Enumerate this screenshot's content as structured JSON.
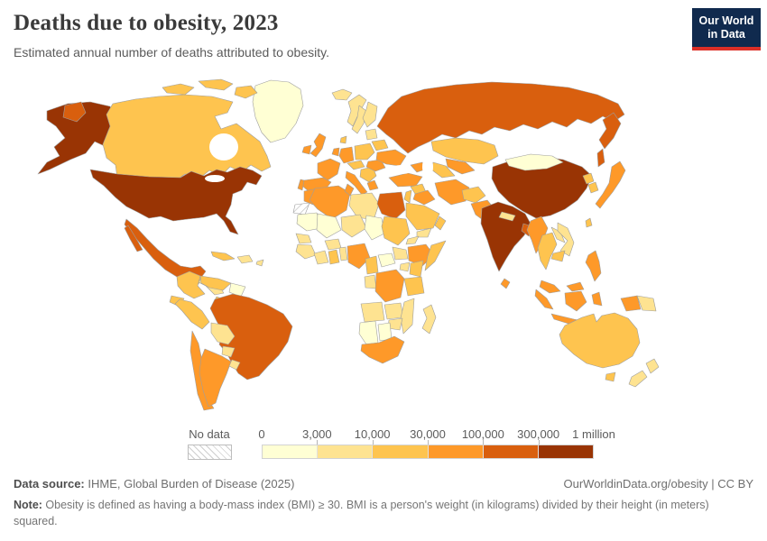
{
  "header": {
    "title": "Deaths due to obesity, 2023",
    "subtitle": "Estimated annual number of deaths attributed to obesity.",
    "logo": {
      "line1": "Our World",
      "line2": "in Data"
    }
  },
  "legend": {
    "no_data_label": "No data",
    "tick_labels": [
      "0",
      "3,000",
      "10,000",
      "30,000",
      "100,000",
      "300,000",
      "1 million"
    ]
  },
  "footer": {
    "source_label": "Data source:",
    "source_text": " IHME, Global Burden of Disease (2025)",
    "link_text": "OurWorldinData.org/obesity | CC BY",
    "note_label": "Note:",
    "note_text": " Obesity is defined as having a body-mass index (BMI) ≥ 30. BMI is a person's weight (in kilograms) divided by their height (in meters) squared."
  },
  "chart_data": {
    "type": "heatmap",
    "subtype": "world-choropleth",
    "title": "Deaths due to obesity, 2023",
    "subtitle": "Estimated annual number of deaths attributed to obesity.",
    "unit": "deaths per year",
    "legend_position": "bottom",
    "no_data": {
      "label": "No data",
      "pattern": "diagonal-hatch"
    },
    "bins": [
      {
        "range": "0–3,000",
        "color": "#ffffd4"
      },
      {
        "range": "3,000–10,000",
        "color": "#fee391"
      },
      {
        "range": "10,000–30,000",
        "color": "#fec44f"
      },
      {
        "range": "30,000–100,000",
        "color": "#fe9929"
      },
      {
        "range": "100,000–300,000",
        "color": "#d95f0e"
      },
      {
        "range": "300,000–1 million",
        "color": "#993404"
      }
    ],
    "regions": {
      "greenland": 1,
      "iceland": 2,
      "canada": 3,
      "united-states": 6,
      "mexico": 5,
      "guatemala": 3,
      "honduras-nicaragua": 2,
      "costa-rica-panama": 3,
      "cuba": 3,
      "hispaniola": 2,
      "lesser-antilles": 2,
      "colombia": 3,
      "venezuela": 3,
      "guyanas": 1,
      "ecuador": 3,
      "peru": 3,
      "brazil": 5,
      "bolivia": 2,
      "paraguay": 2,
      "chile": 4,
      "argentina": 4,
      "uruguay": 2,
      "norway": 2,
      "sweden": 2,
      "finland": 2,
      "denmark": 3,
      "united-kingdom": 4,
      "ireland": 4,
      "france": 4,
      "spain": 4,
      "portugal": 4,
      "germany": 4,
      "benelux": 4,
      "poland": 3,
      "czech-austria": 3,
      "italy": 4,
      "balkans": 3,
      "romania": 4,
      "greece": 4,
      "ukraine": 4,
      "belarus": 3,
      "baltics": 2,
      "russia": 5,
      "kazakhstan": 3,
      "uzbekistan": 4,
      "turkmenistan": 3,
      "caucasus": 4,
      "turkey": 4,
      "syria": 3,
      "iraq": 4,
      "jordan-israel": 3,
      "saudi-arabia": 3,
      "yemen": 2,
      "oman": 3,
      "iran": 4,
      "afghanistan": 3,
      "pakistan": 4,
      "india": 6,
      "nepal": 2,
      "bangladesh": 5,
      "sri-lanka": 4,
      "china": 6,
      "mongolia": 1,
      "north-korea": 3,
      "south-korea": 3,
      "japan": 4,
      "taiwan": 3,
      "myanmar": 4,
      "thailand": 3,
      "laos": 2,
      "vietnam": 2,
      "cambodia": 3,
      "malaysia": 4,
      "indonesia": 4,
      "papua-new-guinea": 2,
      "philippines": 4,
      "australia": 3,
      "new-zealand": 2,
      "morocco": 4,
      "western-sahara": 0,
      "algeria": 4,
      "tunisia": 4,
      "libya": 2,
      "egypt": 5,
      "mauritania": 1,
      "mali": 1,
      "niger": 2,
      "chad": 1,
      "sudan": 3,
      "eritrea": 2,
      "ethiopia": 4,
      "somalia": 3,
      "senegal": 2,
      "guinea-group": 2,
      "ivory-coast": 2,
      "ghana": 3,
      "burkina-faso": 2,
      "benin-togo": 2,
      "nigeria": 4,
      "cameroon": 3,
      "central-african-republic": 1,
      "south-sudan": 2,
      "congo-gabon": 2,
      "drc": 4,
      "uganda": 2,
      "kenya": 3,
      "tanzania": 3,
      "angola": 2,
      "zambia": 2,
      "mozambique": 2,
      "zimbabwe": 2,
      "namibia": 1,
      "botswana": 1,
      "south-africa": 4,
      "madagascar": 2
    }
  }
}
